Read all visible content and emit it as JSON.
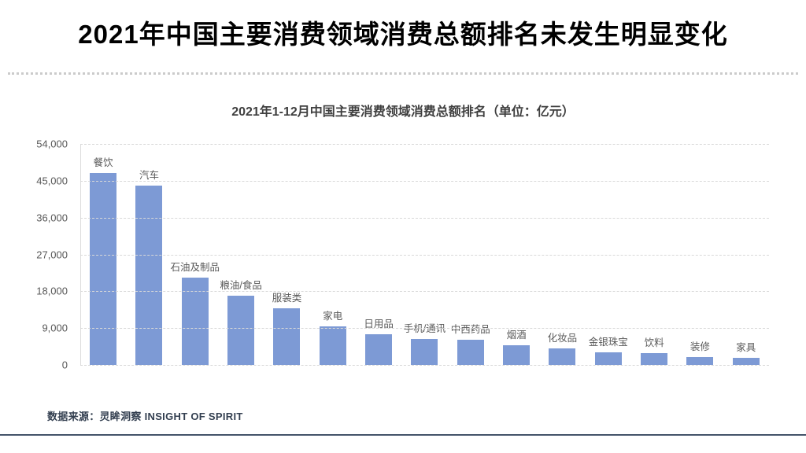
{
  "page": {
    "title": "2021年中国主要消费领域消费总额排名未发生明显变化",
    "source_note": "数据来源：灵眸洞察 INSIGHT OF SPIRIT"
  },
  "chart_data": {
    "type": "bar",
    "title": "2021年1-12月中国主要消费领域消费总额排名（单位：亿元）",
    "unit": "亿元",
    "categories": [
      "餐饮",
      "汽车",
      "石油及制品",
      "粮油/食品",
      "服装类",
      "家电",
      "日用品",
      "手机/通讯",
      "中西药品",
      "烟酒",
      "化妆品",
      "金银珠宝",
      "饮料",
      "装修",
      "家具"
    ],
    "values": [
      46895,
      43787,
      21294,
      16904,
      13842,
      9340,
      7423,
      6420,
      6153,
      4814,
      4026,
      3041,
      2808,
      1963,
      1667
    ],
    "ylim": [
      0,
      54000
    ],
    "y_ticks": [
      "54,000",
      "45,000",
      "36,000",
      "27,000",
      "18,000",
      "9,000",
      "0"
    ],
    "grid": "horizontal-dashed",
    "legend": "none",
    "bar_color": "#7d9ad5",
    "value_labels": "category names shown above each bar"
  },
  "colors": {
    "background": "#ffffff",
    "title_text": "#000000",
    "chart_title_text": "#3f3f3f",
    "axis_text": "#595959",
    "gridline": "#d8d8d8",
    "bar": "#7d9ad5",
    "footer_line": "#44546a",
    "source_text": "#333f50"
  }
}
